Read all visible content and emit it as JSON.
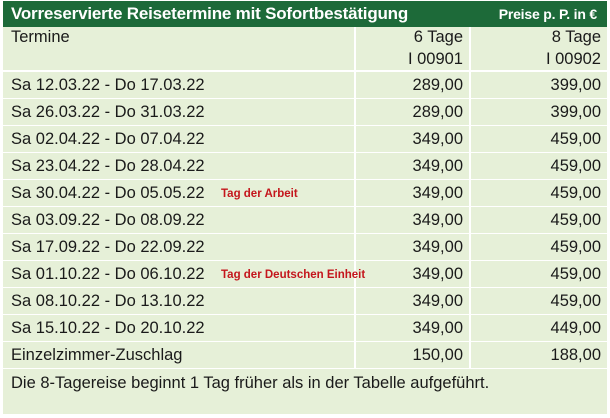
{
  "header": {
    "title": "Vorreservierte Reisetermine mit Sofortbestätigung",
    "price_note": "Preise p. P. in €"
  },
  "columns": {
    "termine": "Termine",
    "tour1_days": "6 Tage",
    "tour1_code": "I 00901",
    "tour2_days": "8 Tage",
    "tour2_code": "I 00902"
  },
  "rows": [
    {
      "date": "Sa  12.03.22 - Do 17.03.22",
      "note": "",
      "price6": "289,00",
      "price8": "399,00"
    },
    {
      "date": "Sa  26.03.22 - Do 31.03.22",
      "note": "",
      "price6": "289,00",
      "price8": "399,00"
    },
    {
      "date": "Sa  02.04.22 - Do 07.04.22",
      "note": "",
      "price6": "349,00",
      "price8": "459,00"
    },
    {
      "date": "Sa  23.04.22 - Do 28.04.22",
      "note": "",
      "price6": "349,00",
      "price8": "459,00"
    },
    {
      "date": "Sa  30.04.22 - Do 05.05.22",
      "note": "Tag der Arbeit",
      "price6": "349,00",
      "price8": "459,00"
    },
    {
      "date": "Sa  03.09.22 - Do 08.09.22",
      "note": "",
      "price6": "349,00",
      "price8": "459,00"
    },
    {
      "date": "Sa  17.09.22 - Do  22.09.22",
      "note": "",
      "price6": "349,00",
      "price8": "459,00"
    },
    {
      "date": "Sa  01.10.22 - Do 06.10.22",
      "note": "Tag der Deutschen Einheit",
      "price6": "349,00",
      "price8": "459,00"
    },
    {
      "date": "Sa  08.10.22 - Do 13.10.22",
      "note": "",
      "price6": "349,00",
      "price8": "459,00"
    },
    {
      "date": "Sa  15.10.22 - Do 20.10.22",
      "note": "",
      "price6": "349,00",
      "price8": "449,00"
    }
  ],
  "supplement": {
    "label": "Einzelzimmer-Zuschlag",
    "price6": "150,00",
    "price8": "188,00"
  },
  "footer_note": "Die 8-Tagereise beginnt 1 Tag früher als in der Tabelle aufgeführt.",
  "colors": {
    "header_bg": "#1d6a39",
    "table_bg": "#e6f0d8",
    "note_red": "#c4161c"
  }
}
